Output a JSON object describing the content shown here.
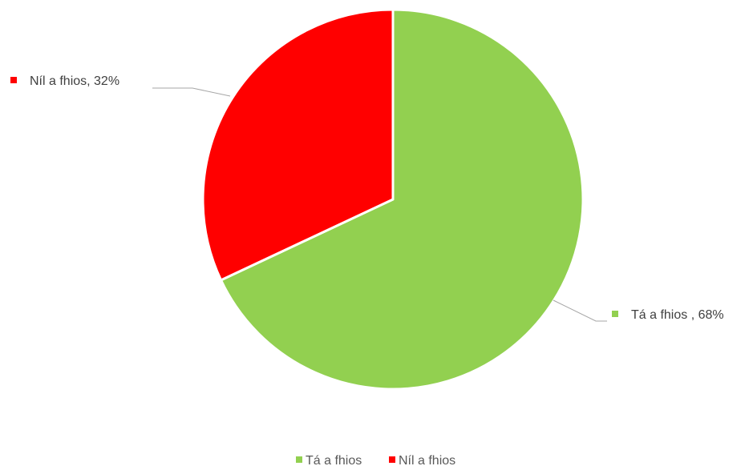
{
  "chart_data": {
    "type": "pie",
    "title": "",
    "categories": [
      "Tá a fhios",
      "Níl a fhios"
    ],
    "values": [
      68,
      32
    ],
    "unit": "%",
    "colors": [
      "#92D050",
      "#FF0000"
    ],
    "data_labels": [
      "Tá a fhios , 68%",
      "Níl a fhios, 32%"
    ],
    "legend": {
      "position": "bottom",
      "entries": [
        "Tá a fhios",
        "Níl a fhios"
      ]
    },
    "start_angle": "12 o'clock",
    "direction": "clockwise"
  }
}
